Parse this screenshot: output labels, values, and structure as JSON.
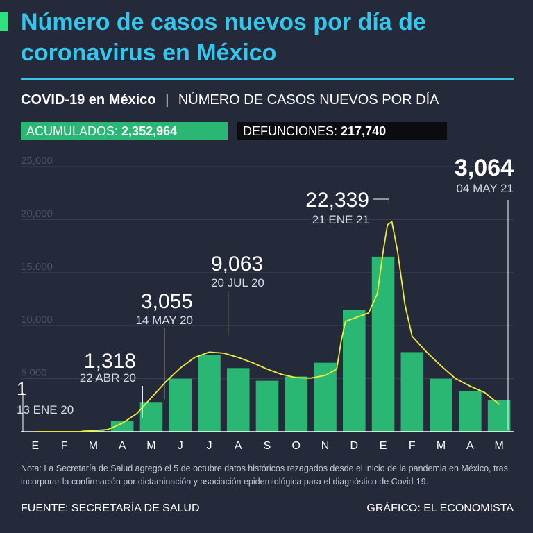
{
  "header": {
    "title": "Número de casos nuevos por día de coronavirus en México",
    "subtitle_strong": "COVID-19 en México",
    "subtitle_sep": "|",
    "subtitle_rest": "NÚMERO DE CASOS NUEVOS POR DÍA"
  },
  "stats": {
    "accumulated_label": "ACUMULADOS:",
    "accumulated_value": "2,352,964",
    "deaths_label": "DEFUNCIONES:",
    "deaths_value": "217,740"
  },
  "colors": {
    "background": "#252a3b",
    "title": "#35c6ee",
    "bars": "#2ab673",
    "trend": "#f2ec3a",
    "accent": "#2fe07e",
    "annotation": "#ffffff"
  },
  "chart_data": {
    "type": "bar",
    "ylim": [
      0,
      25000
    ],
    "yticks": [
      {
        "value": 25000,
        "label": "25,000"
      },
      {
        "value": 20000,
        "label": "20,000"
      },
      {
        "value": 15000,
        "label": "15,000"
      },
      {
        "value": 10000,
        "label": "10,000"
      },
      {
        "value": 5000,
        "label": "5,000"
      }
    ],
    "xtick_labels": [
      "E",
      "F",
      "M",
      "A",
      "M",
      "J",
      "J",
      "A",
      "S",
      "O",
      "N",
      "D",
      "E",
      "F",
      "M",
      "A",
      "M"
    ],
    "grid": true,
    "categories": [
      "Ene 20",
      "Feb 20",
      "Mar 20",
      "Abr 20",
      "May 20",
      "Jun 20",
      "Jul 20",
      "Ago 20",
      "Sep 20",
      "Oct 20",
      "Nov 20",
      "Dic 20",
      "Ene 21",
      "Feb 21",
      "Mar 21",
      "Abr 21",
      "May 21"
    ],
    "series": [
      {
        "values": [
          0,
          0,
          150,
          1000,
          2800,
          5000,
          7200,
          6000,
          4800,
          5200,
          6500,
          11500,
          16500,
          7500,
          5000,
          3800,
          3000
        ]
      }
    ],
    "trend": [
      {
        "x": 0.0,
        "y": 0
      },
      {
        "x": 1.5,
        "y": 0
      },
      {
        "x": 2.5,
        "y": 200
      },
      {
        "x": 3.0,
        "y": 800
      },
      {
        "x": 3.5,
        "y": 1700
      },
      {
        "x": 4.0,
        "y": 3200
      },
      {
        "x": 4.5,
        "y": 4700
      },
      {
        "x": 5.0,
        "y": 6000
      },
      {
        "x": 5.5,
        "y": 7000
      },
      {
        "x": 6.0,
        "y": 7500
      },
      {
        "x": 6.5,
        "y": 7400
      },
      {
        "x": 7.0,
        "y": 7000
      },
      {
        "x": 7.5,
        "y": 6500
      },
      {
        "x": 8.0,
        "y": 5900
      },
      {
        "x": 8.5,
        "y": 5400
      },
      {
        "x": 9.0,
        "y": 5100
      },
      {
        "x": 9.5,
        "y": 5050
      },
      {
        "x": 10.0,
        "y": 5300
      },
      {
        "x": 10.4,
        "y": 5900
      },
      {
        "x": 10.55,
        "y": 8500
      },
      {
        "x": 10.7,
        "y": 10400
      },
      {
        "x": 11.0,
        "y": 10700
      },
      {
        "x": 11.5,
        "y": 11200
      },
      {
        "x": 11.8,
        "y": 13000
      },
      {
        "x": 12.0,
        "y": 17000
      },
      {
        "x": 12.15,
        "y": 19500
      },
      {
        "x": 12.3,
        "y": 19800
      },
      {
        "x": 12.5,
        "y": 17000
      },
      {
        "x": 12.75,
        "y": 12000
      },
      {
        "x": 13.0,
        "y": 9000
      },
      {
        "x": 13.5,
        "y": 7500
      },
      {
        "x": 14.0,
        "y": 6200
      },
      {
        "x": 14.5,
        "y": 5000
      },
      {
        "x": 15.0,
        "y": 4300
      },
      {
        "x": 15.5,
        "y": 3700
      },
      {
        "x": 16.0,
        "y": 2600
      }
    ],
    "annotations": [
      {
        "value": "1",
        "date": "13 ENE 20",
        "x": 0.0,
        "y": 1
      },
      {
        "value": "1,318",
        "date": "22 ABR 20",
        "x": 3.7,
        "y": 1318
      },
      {
        "value": "3,055",
        "date": "14 MAY 20",
        "x": 4.45,
        "y": 3055
      },
      {
        "value": "9,063",
        "date": "20 JUL 20",
        "x": 6.65,
        "y": 9063
      },
      {
        "value": "22,339",
        "date": "21 ENE 21",
        "x": 12.2,
        "y": 22339
      },
      {
        "value": "3,064",
        "date": "04 MAY 21",
        "x": 16.1,
        "y": 3064
      }
    ]
  },
  "footer": {
    "note": "Nota: La Secretaría de Salud agregó el 5 de octubre datos históricos rezagados desde el inicio de la pandemia en México, tras incorporar la confirmación por dictaminación y asociación epidemiológica para el diagnóstico de Covid-19.",
    "source": "FUENTE: SECRETARÍA DE SALUD",
    "credit": "GRÁFICO: EL ECONOMISTA"
  }
}
